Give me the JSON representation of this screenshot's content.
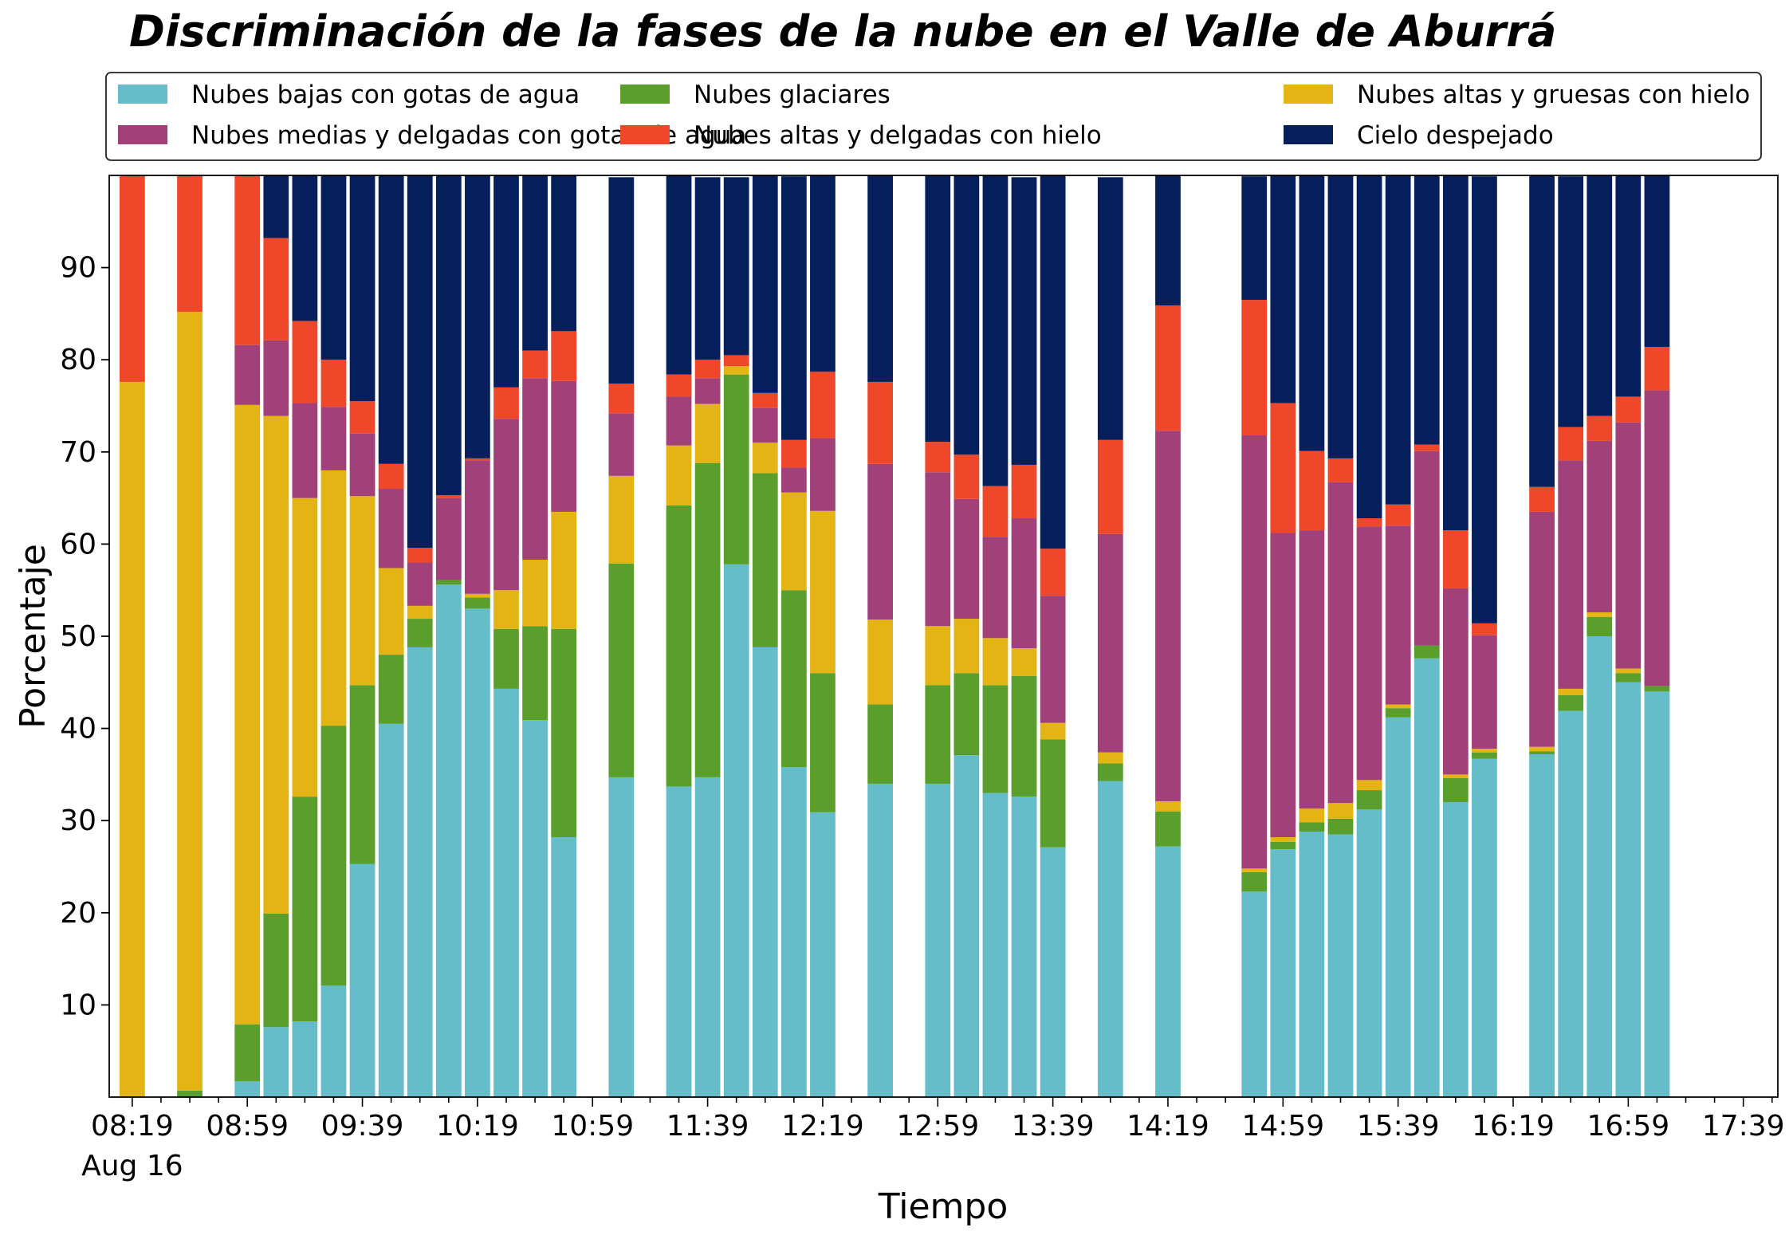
{
  "chart_data": {
    "type": "bar",
    "stacked": true,
    "title": "Discriminación de la fases de la nube en el Valle de Aburrá",
    "xlabel": "Tiempo",
    "ylabel": "Porcentaje",
    "ylim": [
      0,
      100
    ],
    "yticks": [
      10,
      20,
      30,
      40,
      50,
      60,
      70,
      80,
      90
    ],
    "xlim": [
      "08:11",
      "17:51"
    ],
    "bar_interval_minutes": 10,
    "xticks": [
      {
        "time": "08:19",
        "label": "08:19",
        "sublabel": "Aug 16"
      },
      {
        "time": "08:59",
        "label": "08:59"
      },
      {
        "time": "09:39",
        "label": "09:39"
      },
      {
        "time": "10:19",
        "label": "10:19"
      },
      {
        "time": "10:59",
        "label": "10:59"
      },
      {
        "time": "11:39",
        "label": "11:39"
      },
      {
        "time": "12:19",
        "label": "12:19"
      },
      {
        "time": "12:59",
        "label": "12:59"
      },
      {
        "time": "13:39",
        "label": "13:39"
      },
      {
        "time": "14:19",
        "label": "14:19"
      },
      {
        "time": "14:59",
        "label": "14:59"
      },
      {
        "time": "15:39",
        "label": "15:39"
      },
      {
        "time": "16:19",
        "label": "16:19"
      },
      {
        "time": "16:59",
        "label": "16:59"
      },
      {
        "time": "17:39",
        "label": "17:39"
      }
    ],
    "legend": {
      "position": "top",
      "columns": 3
    },
    "x": [
      "08:19",
      "08:39",
      "08:59",
      "09:09",
      "09:19",
      "09:29",
      "09:39",
      "09:49",
      "09:59",
      "10:09",
      "10:19",
      "10:29",
      "10:39",
      "10:49",
      "11:09",
      "11:29",
      "11:39",
      "11:49",
      "11:59",
      "12:09",
      "12:19",
      "12:39",
      "12:59",
      "13:09",
      "13:19",
      "13:29",
      "13:39",
      "13:59",
      "14:19",
      "14:49",
      "14:59",
      "15:09",
      "15:19",
      "15:29",
      "15:39",
      "15:49",
      "15:59",
      "16:09",
      "16:29",
      "16:39",
      "16:49",
      "16:59",
      "17:09",
      "17:19"
    ],
    "series": [
      {
        "name": "Nubes bajas con gotas de agua",
        "color": "#65bdc9",
        "values": [
          0,
          0,
          1.7,
          7.6,
          8.2,
          12.1,
          25.3,
          40.5,
          48.8,
          55.6,
          53.0,
          44.3,
          40.9,
          28.2,
          34.7,
          33.7,
          34.7,
          57.8,
          48.8,
          35.8,
          30.9,
          34.0,
          34.0,
          37.1,
          33.0,
          32.6,
          27.1,
          34.3,
          27.2,
          22.3,
          26.9,
          28.8,
          28.5,
          31.2,
          41.2,
          47.6,
          32.0,
          36.7,
          37.2,
          41.9,
          50.0,
          45.0,
          44.0,
          0
        ]
      },
      {
        "name": "Nubes glaciares",
        "color": "#5a9e2b",
        "values": [
          0,
          0.7,
          6.2,
          12.3,
          24.4,
          28.2,
          19.4,
          7.5,
          3.1,
          0.5,
          1.2,
          6.5,
          10.2,
          22.6,
          23.2,
          30.5,
          34.1,
          20.6,
          18.9,
          19.2,
          15.1,
          8.6,
          10.7,
          8.9,
          11.7,
          13.1,
          11.7,
          1.9,
          3.8,
          2.1,
          0.8,
          1.0,
          1.7,
          2.1,
          1.0,
          1.4,
          2.6,
          0.7,
          0.3,
          1.7,
          2.1,
          1.0,
          0.6,
          0
        ]
      },
      {
        "name": "Nubes altas y gruesas con hielo",
        "color": "#e3b413",
        "values": [
          77.6,
          84.5,
          67.2,
          54.0,
          32.4,
          27.7,
          20.5,
          9.4,
          1.4,
          0,
          0.4,
          4.2,
          7.2,
          12.7,
          9.5,
          6.5,
          6.4,
          0.9,
          3.3,
          10.6,
          17.6,
          9.2,
          6.4,
          5.9,
          5.1,
          3.0,
          1.8,
          1.2,
          1.1,
          0.4,
          0.5,
          1.5,
          1.7,
          1.1,
          0.4,
          0,
          0.4,
          0.4,
          0.5,
          0.7,
          0.5,
          0.5,
          0,
          0
        ]
      },
      {
        "name": "Nubes medias y delgadas con gotas de agua",
        "color": "#a24179",
        "values": [
          0,
          0,
          6.5,
          8.2,
          10.3,
          6.9,
          6.8,
          8.6,
          4.7,
          8.9,
          14.5,
          18.6,
          19.7,
          14.2,
          6.8,
          5.3,
          2.8,
          0,
          3.8,
          2.7,
          7.9,
          16.9,
          16.7,
          13.0,
          11.0,
          14.1,
          13.8,
          23.7,
          40.2,
          47.0,
          33.0,
          30.2,
          34.8,
          27.5,
          19.4,
          21.1,
          20.2,
          12.3,
          25.5,
          24.8,
          18.6,
          26.7,
          32.1,
          0
        ]
      },
      {
        "name": "Nubes altas y delgadas con hielo",
        "color": "#ef472a",
        "values": [
          22.4,
          14.8,
          18.4,
          11.1,
          8.9,
          5.1,
          3.5,
          2.7,
          1.6,
          0.3,
          0.2,
          3.4,
          3.0,
          5.4,
          3.2,
          2.4,
          2.0,
          1.2,
          1.6,
          3.0,
          7.2,
          8.9,
          3.3,
          4.8,
          5.5,
          5.8,
          5.1,
          10.2,
          13.6,
          14.7,
          14.1,
          8.6,
          2.6,
          0.9,
          2.3,
          0.7,
          6.3,
          1.3,
          2.7,
          3.6,
          2.7,
          2.8,
          4.7,
          0
        ]
      },
      {
        "name": "Cielo despejado",
        "color": "#051f5c",
        "values": [
          0,
          0,
          0,
          6.8,
          15.8,
          20.0,
          24.5,
          31.3,
          40.4,
          34.7,
          30.7,
          23.0,
          19.0,
          16.9,
          22.4,
          21.6,
          19.8,
          19.3,
          23.6,
          28.6,
          21.3,
          22.4,
          28.9,
          30.3,
          33.7,
          31.2,
          40.5,
          28.5,
          14.2,
          13.4,
          25.2,
          29.9,
          30.7,
          37.2,
          35.7,
          29.2,
          38.5,
          48.5,
          33.8,
          27.2,
          26.1,
          24.0,
          18.6,
          0
        ]
      }
    ]
  }
}
